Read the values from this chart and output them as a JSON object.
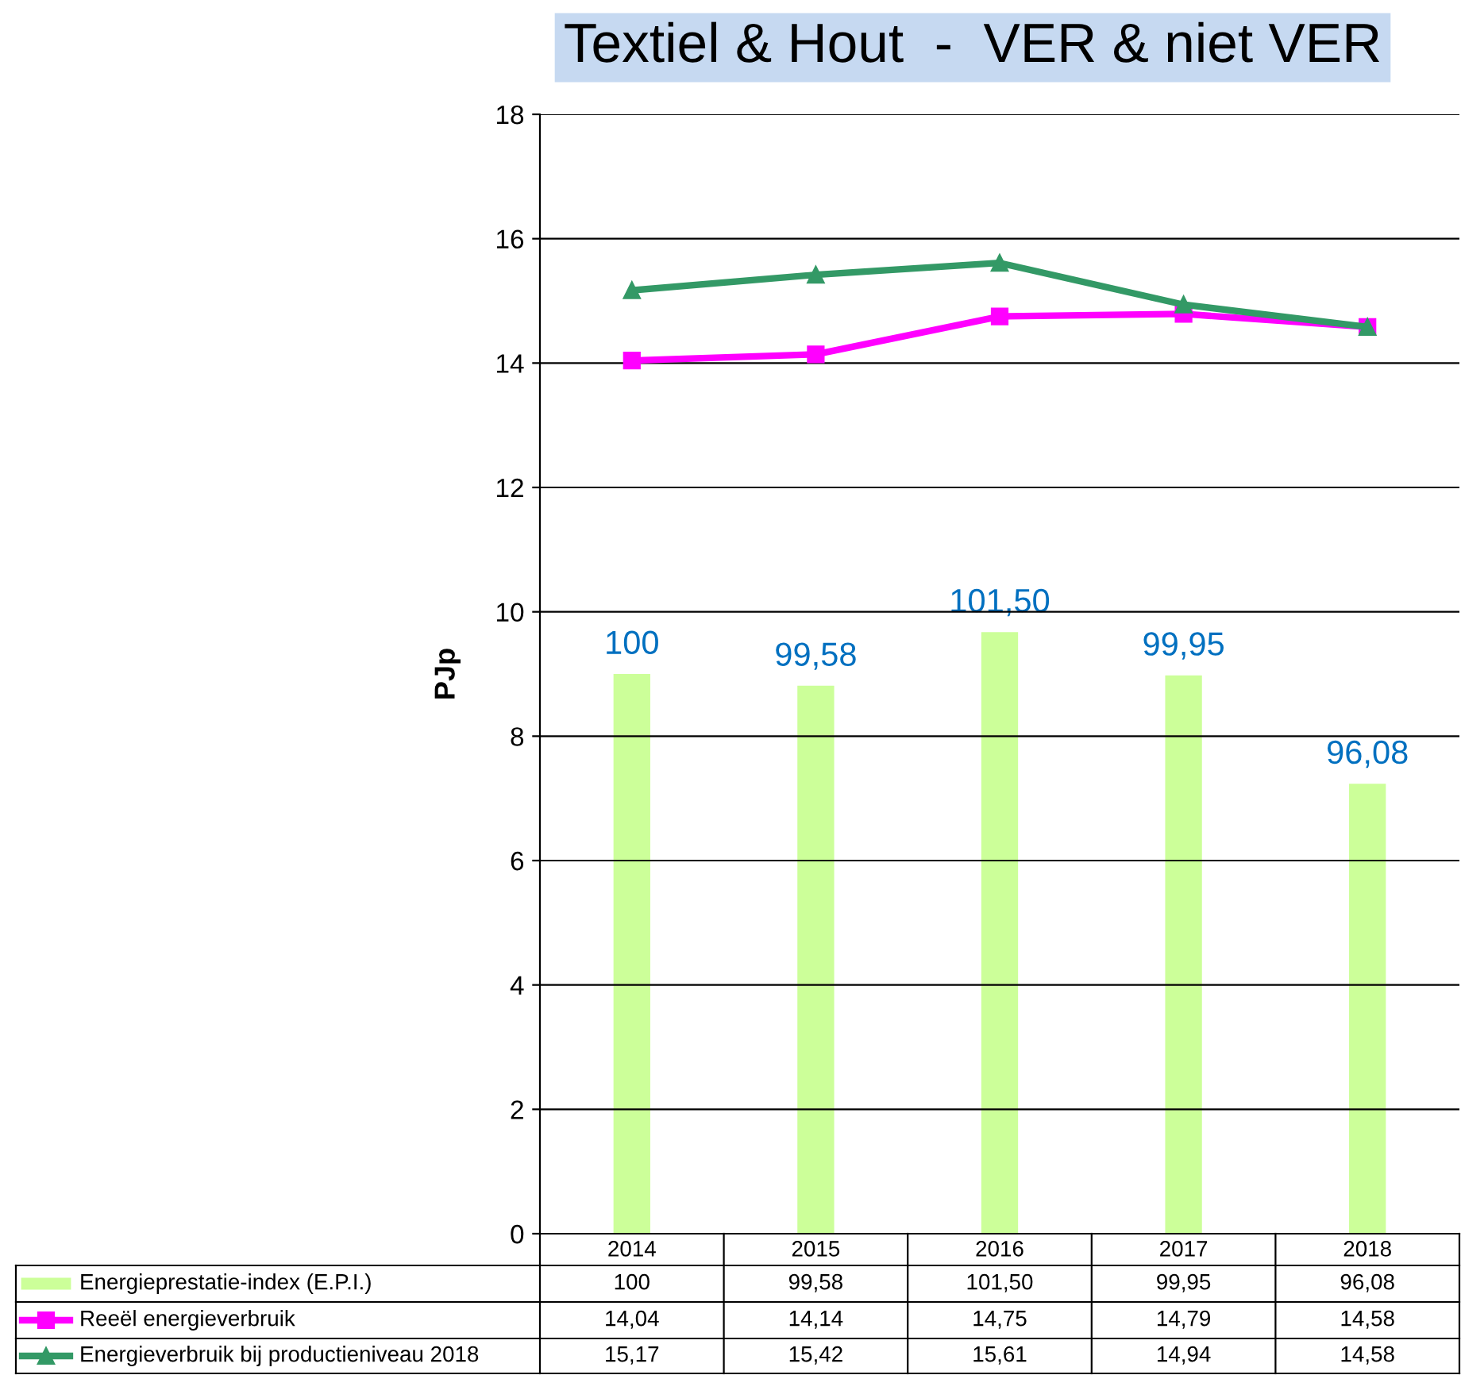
{
  "chart_data": {
    "type": "bar",
    "title": "Textiel & Hout  -  VER & niet VER",
    "ylabel": "PJp",
    "categories": [
      "2014",
      "2015",
      "2016",
      "2017",
      "2018"
    ],
    "ylim": [
      0,
      18
    ],
    "yticks": [
      0,
      2,
      4,
      6,
      8,
      10,
      12,
      14,
      16,
      18
    ],
    "y2lim": [
      80,
      120
    ],
    "grid": "y",
    "legend": "bottom",
    "series": [
      {
        "name": "Energieprestatie-index (E.P.I.)",
        "axis": "y2",
        "color": "#ccff99",
        "values": [
          100,
          99.58,
          101.5,
          99.95,
          96.08
        ],
        "value_labels": [
          "100",
          "99,58",
          "101,50",
          "99,95",
          "96,08"
        ]
      },
      {
        "name": "Reeël energieverbruik",
        "type": "line",
        "color": "#ff00ff",
        "marker": "square",
        "line_style": "solid",
        "values": [
          14.04,
          14.14,
          14.75,
          14.79,
          14.58
        ],
        "value_labels": [
          "14,04",
          "14,14",
          "14,75",
          "14,79",
          "14,58"
        ]
      },
      {
        "name": "Energieverbruik bij productieniveau 2018",
        "type": "line",
        "color": "#339966",
        "marker": "triangle",
        "line_style": "solid",
        "values": [
          15.17,
          15.42,
          15.61,
          14.94,
          14.58
        ],
        "value_labels": [
          "15,17",
          "15,42",
          "15,61",
          "14,94",
          "14,58"
        ]
      }
    ]
  }
}
